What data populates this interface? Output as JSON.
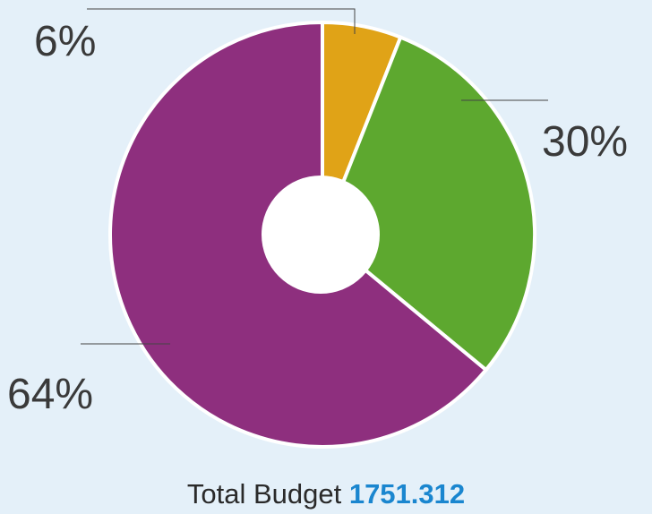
{
  "chart_data": {
    "type": "pie",
    "donut": true,
    "values": [
      6,
      30,
      64
    ],
    "value_labels": [
      "6%",
      "30%",
      "64%"
    ],
    "colors": [
      "#e0a317",
      "#5da82f",
      "#8e2f7e"
    ],
    "title": "Total Budget",
    "total": 1751.312
  }
}
